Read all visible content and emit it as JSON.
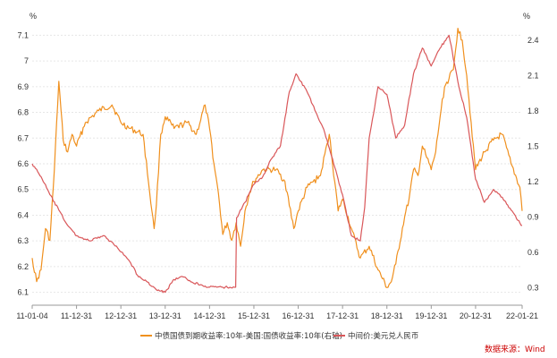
{
  "chart_data": {
    "type": "line",
    "left_unit": "%",
    "right_unit": "%",
    "source": "数据来源：Wind",
    "x_tick_labels": [
      "11-01-04",
      "11-12-31",
      "12-12-31",
      "13-12-31",
      "14-12-31",
      "15-12-31",
      "16-12-31",
      "17-12-31",
      "18-12-31",
      "19-12-31",
      "20-12-31",
      "22-01-21"
    ],
    "x_tick_values": [
      2011.0,
      2012.0,
      2013.0,
      2014.0,
      2015.0,
      2016.0,
      2017.0,
      2018.0,
      2019.0,
      2020.0,
      2021.0,
      2022.05
    ],
    "xlim": [
      2011.0,
      2022.05
    ],
    "left_axis": {
      "ylim": [
        6.05,
        7.15
      ],
      "ticks": [
        "6.1",
        "6.2",
        "6.3",
        "6.4",
        "6.5",
        "6.6",
        "6.7",
        "6.8",
        "6.9",
        "7",
        "7.1"
      ],
      "tick_values": [
        6.1,
        6.2,
        6.3,
        6.4,
        6.5,
        6.6,
        6.7,
        6.8,
        6.9,
        7.0,
        7.1
      ]
    },
    "right_axis": {
      "ylim": [
        0.15,
        2.55
      ],
      "ticks": [
        "0.3",
        "0.6",
        "0.9",
        "1.2",
        "1.5",
        "1.8",
        "2.1",
        "2.4"
      ],
      "tick_values": [
        0.3,
        0.6,
        0.9,
        1.2,
        1.5,
        1.8,
        2.1,
        2.4
      ]
    },
    "grid": true,
    "legend_position": "bottom",
    "series": [
      {
        "name": "中债国债到期收益率:10年-美国:国债收益率:10年(右轴)",
        "axis": "right",
        "color": "#F0901E",
        "x": [
          2011.0,
          2011.1,
          2011.2,
          2011.3,
          2011.4,
          2011.5,
          2011.6,
          2011.7,
          2011.8,
          2011.9,
          2012.0,
          2012.2,
          2012.5,
          2012.8,
          2013.0,
          2013.2,
          2013.5,
          2013.7,
          2013.75,
          2013.8,
          2013.9,
          2014.0,
          2014.2,
          2014.5,
          2014.7,
          2014.9,
          2015.0,
          2015.1,
          2015.2,
          2015.3,
          2015.4,
          2015.5,
          2015.6,
          2015.7,
          2015.8,
          2015.9,
          2016.0,
          2016.2,
          2016.5,
          2016.7,
          2016.9,
          2017.0,
          2017.2,
          2017.5,
          2017.7,
          2017.9,
          2018.0,
          2018.2,
          2018.4,
          2018.6,
          2018.8,
          2019.0,
          2019.1,
          2019.2,
          2019.4,
          2019.5,
          2019.6,
          2019.7,
          2019.8,
          2019.9,
          2020.0,
          2020.1,
          2020.2,
          2020.3,
          2020.5,
          2020.6,
          2020.7,
          2020.8,
          2020.9,
          2021.0,
          2021.2,
          2021.4,
          2021.6,
          2021.8,
          2022.0,
          2022.05
        ],
        "y": [
          0.55,
          0.35,
          0.45,
          0.8,
          0.7,
          1.3,
          2.05,
          1.55,
          1.45,
          1.6,
          1.5,
          1.7,
          1.8,
          1.85,
          1.7,
          1.65,
          1.6,
          0.95,
          0.8,
          1.0,
          1.6,
          1.75,
          1.65,
          1.7,
          1.6,
          1.85,
          1.65,
          1.35,
          1.1,
          0.75,
          0.85,
          0.7,
          0.85,
          0.65,
          0.95,
          1.1,
          1.2,
          1.3,
          1.3,
          1.2,
          0.8,
          0.95,
          1.15,
          1.25,
          1.6,
          0.95,
          1.05,
          0.8,
          0.55,
          0.65,
          0.45,
          0.3,
          0.35,
          0.5,
          0.9,
          1.05,
          1.3,
          1.25,
          1.5,
          1.4,
          1.3,
          1.45,
          1.75,
          2.0,
          2.15,
          2.5,
          2.4,
          2.1,
          1.7,
          1.3,
          1.45,
          1.55,
          1.6,
          1.35,
          1.15,
          0.95
        ]
      },
      {
        "name": "中间价:美元兑人民币",
        "axis": "left",
        "color": "#D9575A",
        "x": [
          2011.0,
          2011.2,
          2011.4,
          2011.6,
          2011.8,
          2012.0,
          2012.3,
          2012.6,
          2012.9,
          2013.2,
          2013.4,
          2013.6,
          2013.8,
          2014.0,
          2014.2,
          2014.4,
          2014.6,
          2014.8,
          2015.0,
          2015.3,
          2015.59,
          2015.61,
          2015.8,
          2016.0,
          2016.2,
          2016.4,
          2016.6,
          2016.8,
          2016.95,
          2017.2,
          2017.4,
          2017.6,
          2017.8,
          2018.0,
          2018.2,
          2018.4,
          2018.5,
          2018.6,
          2018.8,
          2019.0,
          2019.2,
          2019.4,
          2019.6,
          2019.8,
          2020.0,
          2020.2,
          2020.4,
          2020.6,
          2020.8,
          2021.0,
          2021.2,
          2021.4,
          2021.6,
          2021.8,
          2022.0,
          2022.05
        ],
        "y": [
          6.6,
          6.55,
          6.48,
          6.42,
          6.36,
          6.32,
          6.3,
          6.32,
          6.28,
          6.22,
          6.16,
          6.14,
          6.11,
          6.1,
          6.15,
          6.16,
          6.14,
          6.13,
          6.12,
          6.12,
          6.12,
          6.39,
          6.45,
          6.52,
          6.55,
          6.62,
          6.67,
          6.88,
          6.95,
          6.88,
          6.8,
          6.72,
          6.6,
          6.48,
          6.32,
          6.3,
          6.43,
          6.7,
          6.9,
          6.87,
          6.7,
          6.75,
          6.95,
          7.05,
          6.98,
          7.05,
          7.1,
          6.92,
          6.78,
          6.54,
          6.45,
          6.5,
          6.47,
          6.42,
          6.37,
          6.36
        ]
      }
    ]
  }
}
